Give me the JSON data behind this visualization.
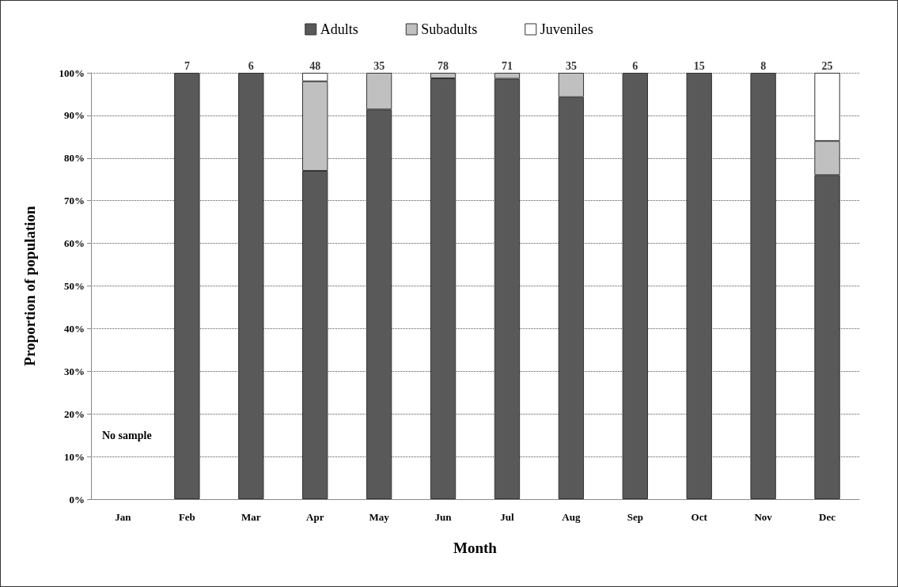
{
  "chart_data": {
    "type": "bar",
    "stacked": true,
    "xlabel": "Month",
    "ylabel": "Proportion of population",
    "categories": [
      "Jan",
      "Feb",
      "Mar",
      "Apr",
      "May",
      "Jun",
      "Jul",
      "Aug",
      "Sep",
      "Oct",
      "Nov",
      "Dec"
    ],
    "series": [
      {
        "name": "Adults",
        "color": "#595959",
        "values": [
          null,
          100,
          100,
          77,
          91.4,
          98.7,
          98.6,
          94.3,
          100,
          100,
          100,
          76
        ]
      },
      {
        "name": "Subadults",
        "color": "#c0c0c0",
        "values": [
          null,
          null,
          null,
          21,
          8.6,
          1.3,
          1.4,
          5.7,
          null,
          null,
          null,
          8
        ]
      },
      {
        "name": "Juveniles",
        "color": "#ffffff",
        "values": [
          null,
          null,
          null,
          2,
          null,
          null,
          null,
          null,
          null,
          null,
          null,
          16
        ]
      }
    ],
    "annotations": [
      "No sample",
      {
        "text": "7",
        "x": "Feb",
        "y": 100
      },
      {
        "text": "6",
        "x": "Mar",
        "y": 100
      },
      {
        "text": "48",
        "x": "Apr",
        "y": 100
      },
      {
        "text": "35",
        "x": "May",
        "y": 100
      },
      {
        "text": "78",
        "x": "Jun",
        "y": 100
      },
      {
        "text": "71",
        "x": "Jul",
        "y": 100
      },
      {
        "text": "35",
        "x": "Aug",
        "y": 100
      },
      {
        "text": "6",
        "x": "Sep",
        "y": 100
      },
      {
        "text": "15",
        "x": "Oct",
        "y": 100
      },
      {
        "text": "8",
        "x": "Nov",
        "y": 100
      },
      {
        "text": "25",
        "x": "Dec",
        "y": 100
      }
    ],
    "ylim": [
      0,
      100
    ],
    "yticks": [
      {
        "value": 0,
        "label": "0%"
      },
      {
        "value": 10,
        "label": "10%"
      },
      {
        "value": 20,
        "label": "20%"
      },
      {
        "value": 30,
        "label": "30%"
      },
      {
        "value": 40,
        "label": "40%"
      },
      {
        "value": 50,
        "label": "50%"
      },
      {
        "value": 60,
        "label": "60%"
      },
      {
        "value": 70,
        "label": "70%"
      },
      {
        "value": 80,
        "label": "80%"
      },
      {
        "value": 90,
        "label": "90%"
      },
      {
        "value": 100,
        "label": "100%"
      }
    ],
    "grid": "y",
    "legend": "top"
  }
}
